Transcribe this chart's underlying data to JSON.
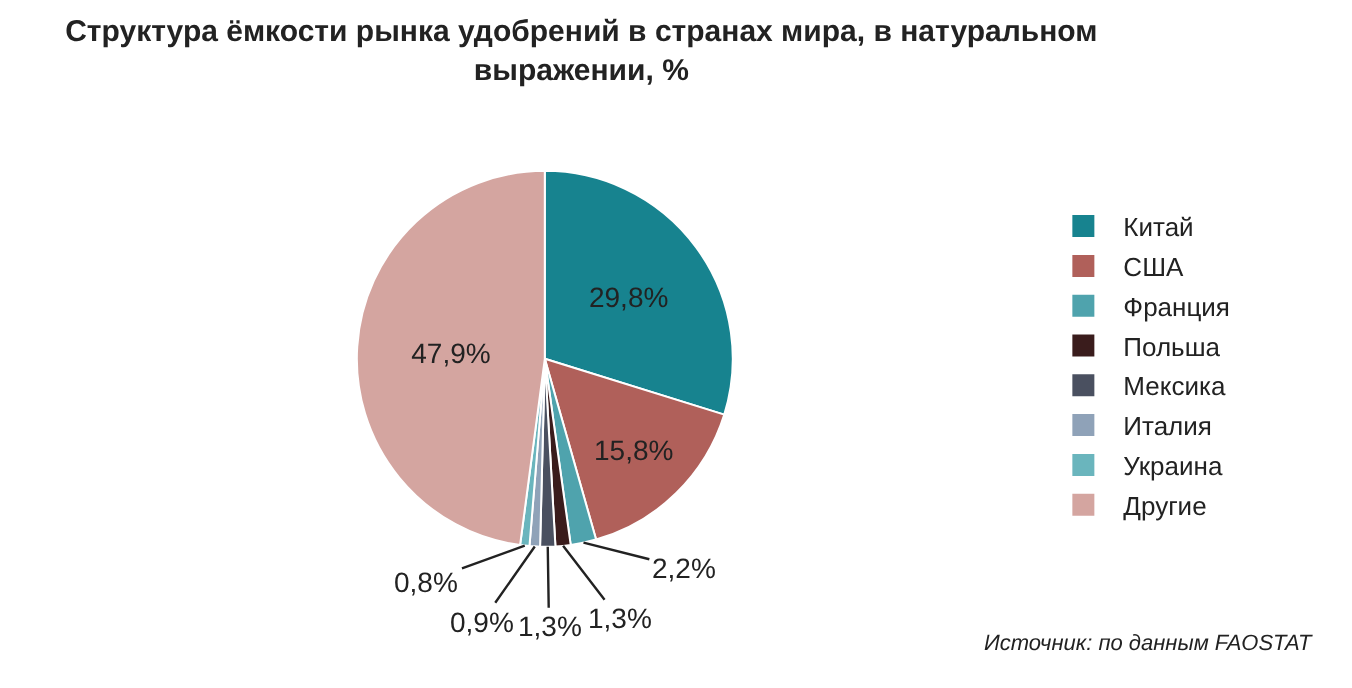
{
  "chart_data": {
    "type": "pie",
    "title": "Структура ёмкости рынка удобрений в странах мира, в натуральном выражении, %",
    "categories": [
      "Китай",
      "США",
      "Франция",
      "Польша",
      "Мексика",
      "Италия",
      "Украина",
      "Другие"
    ],
    "values": [
      29.8,
      15.8,
      2.2,
      1.3,
      1.3,
      0.9,
      0.8,
      47.9
    ],
    "value_labels": [
      "29,8%",
      "15,8%",
      "2,2%",
      "1,3%",
      "1,3%",
      "0,9%",
      "0,8%",
      "47,9%"
    ],
    "colors": [
      "#17838f",
      "#b0605a",
      "#4fa3ad",
      "#3a1c1c",
      "#4a5060",
      "#8fa2b8",
      "#6ab5bd",
      "#d4a5a0"
    ],
    "legend": "right",
    "annotations": [
      "Источник: по данным FAOSTAT"
    ]
  }
}
